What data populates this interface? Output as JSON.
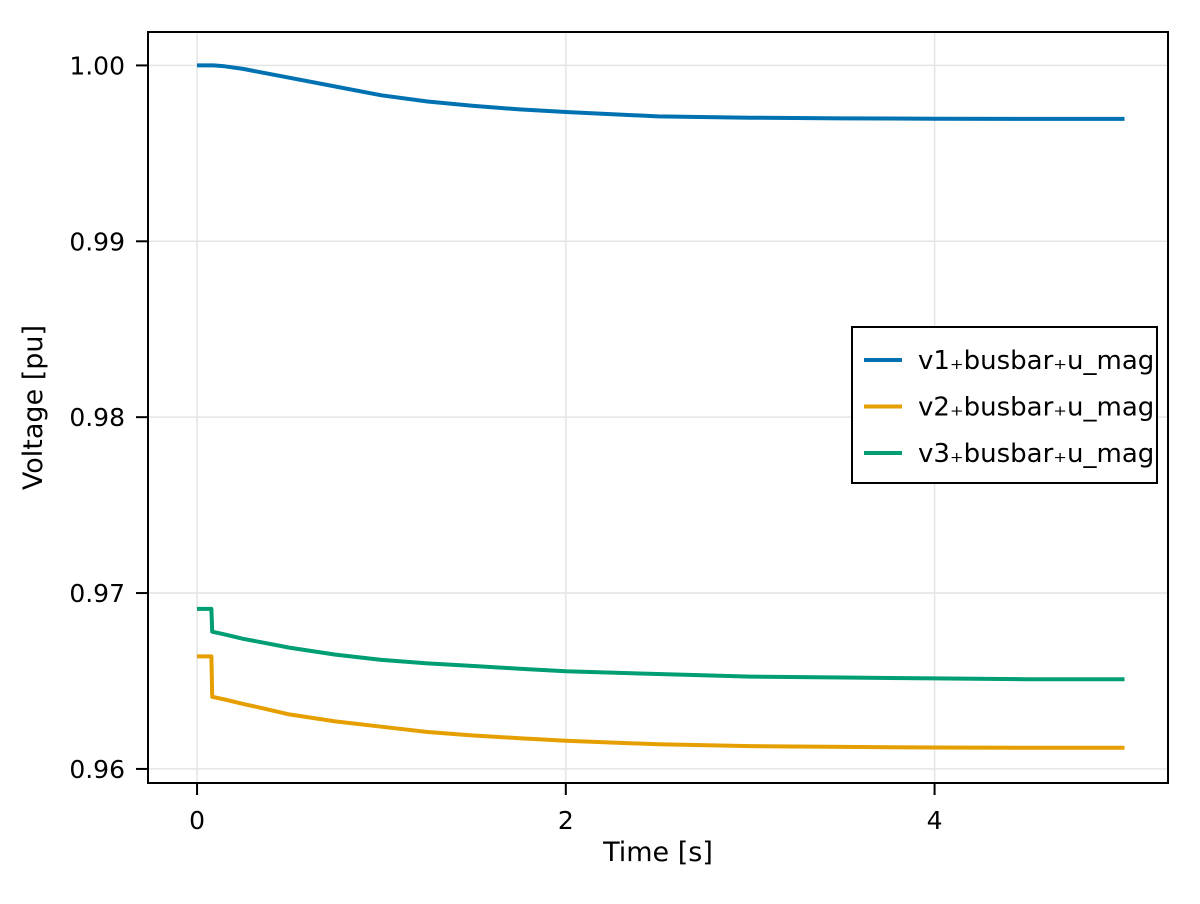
{
  "chart_data": {
    "type": "line",
    "title": "",
    "xlabel": "Time [s]",
    "ylabel": "Voltage [pu]",
    "xlim": [
      -0.266,
      5.266
    ],
    "ylim": [
      0.9592,
      1.0019
    ],
    "xticks": [
      0,
      2,
      4
    ],
    "xtick_labels": [
      "0",
      "2",
      "4"
    ],
    "yticks": [
      0.96,
      0.97,
      0.98,
      0.99,
      1.0
    ],
    "ytick_labels": [
      "0.96",
      "0.97",
      "0.98",
      "0.99",
      "1.00"
    ],
    "grid": true,
    "legend_position": "right-center",
    "colors": {
      "background": "#ffffff",
      "frame": "#000000",
      "grid": "#e4e4e4",
      "text": "#000000",
      "legend_border": "#000000",
      "legend_background": "#ffffff"
    },
    "series": [
      {
        "name": "v1₊busbar₊u_mag",
        "color": "#0072B2",
        "x": [
          0,
          0.09,
          0.15,
          0.25,
          0.375,
          0.5,
          0.75,
          1.0,
          1.25,
          1.5,
          1.75,
          2.0,
          2.5,
          3.0,
          3.5,
          4.0,
          4.5,
          5.03
        ],
        "y": [
          1.0,
          1.0,
          0.99995,
          0.9998,
          0.99955,
          0.9993,
          0.9988,
          0.9983,
          0.99795,
          0.9977,
          0.9975,
          0.99735,
          0.9971,
          0.99703,
          0.99699,
          0.99697,
          0.99696,
          0.99696
        ]
      },
      {
        "name": "v2₊busbar₊u_mag",
        "color": "#E69F00",
        "x": [
          0,
          0.078,
          0.082,
          0.15,
          0.25,
          0.375,
          0.5,
          0.75,
          1.0,
          1.25,
          1.5,
          1.75,
          2.0,
          2.5,
          3.0,
          3.5,
          4.0,
          4.5,
          5.03
        ],
        "y": [
          0.9664,
          0.9664,
          0.9641,
          0.96395,
          0.9637,
          0.9634,
          0.9631,
          0.9627,
          0.9624,
          0.9621,
          0.9619,
          0.96175,
          0.9616,
          0.9614,
          0.9613,
          0.96125,
          0.96122,
          0.9612,
          0.9612
        ]
      },
      {
        "name": "v3₊busbar₊u_mag",
        "color": "#009E73",
        "x": [
          0,
          0.078,
          0.082,
          0.15,
          0.25,
          0.375,
          0.5,
          0.75,
          1.0,
          1.25,
          1.5,
          1.75,
          2.0,
          2.5,
          3.0,
          3.5,
          4.0,
          4.5,
          5.03
        ],
        "y": [
          0.9691,
          0.9691,
          0.9678,
          0.96765,
          0.9674,
          0.96715,
          0.9669,
          0.9665,
          0.9662,
          0.966,
          0.96585,
          0.9657,
          0.96555,
          0.9654,
          0.96525,
          0.9652,
          0.96515,
          0.9651,
          0.9651
        ]
      }
    ]
  }
}
